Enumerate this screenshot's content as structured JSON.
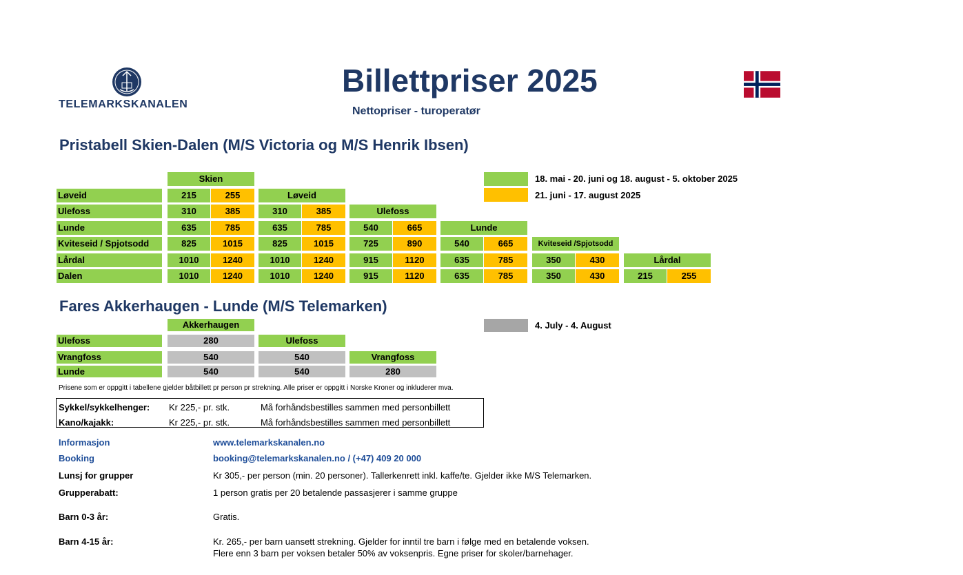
{
  "header": {
    "logo_text": "TELEMARKSKANALEN",
    "title": "Billettpriser 2025",
    "subtitle": "Nettopriser - turoperatør"
  },
  "section1": {
    "title": "Pristabell Skien-Dalen (M/S Victoria og M/S Henrik Ibsen)",
    "legend": [
      {
        "color": "#92d050",
        "label": "18. mai - 20. juni og 18. august - 5. oktober 2025"
      },
      {
        "color": "#ffc000",
        "label": "21. juni - 17. august 2025"
      }
    ],
    "row_labels": [
      "Løveid",
      "Ulefoss",
      "Lunde",
      "Kviteseid / Spjotsodd",
      "Lårdal",
      "Dalen"
    ],
    "col_headers": [
      "Skien",
      "Løveid",
      "Ulefoss",
      "Lunde",
      "Kviteseid /Spjotsodd",
      "Lårdal"
    ],
    "prices": [
      [
        [
          "215",
          "255"
        ]
      ],
      [
        [
          "310",
          "385"
        ],
        [
          "310",
          "385"
        ]
      ],
      [
        [
          "635",
          "785"
        ],
        [
          "635",
          "785"
        ],
        [
          "540",
          "665"
        ]
      ],
      [
        [
          "825",
          "1015"
        ],
        [
          "825",
          "1015"
        ],
        [
          "725",
          "890"
        ],
        [
          "540",
          "665"
        ]
      ],
      [
        [
          "1010",
          "1240"
        ],
        [
          "1010",
          "1240"
        ],
        [
          "915",
          "1120"
        ],
        [
          "635",
          "785"
        ],
        [
          "350",
          "430"
        ]
      ],
      [
        [
          "1010",
          "1240"
        ],
        [
          "1010",
          "1240"
        ],
        [
          "915",
          "1120"
        ],
        [
          "635",
          "785"
        ],
        [
          "350",
          "430"
        ],
        [
          "215",
          "255"
        ]
      ]
    ]
  },
  "section2": {
    "title": "Fares Akkerhaugen - Lunde (M/S Telemarken)",
    "legend": {
      "color": "#a6a6a6",
      "label": "4. July - 4. August"
    },
    "row_labels": [
      "Ulefoss",
      "Vrangfoss",
      "Lunde"
    ],
    "col_headers": [
      "Akkerhaugen",
      "Ulefoss",
      "Vrangfoss"
    ],
    "prices": [
      [
        "280"
      ],
      [
        "540",
        "540"
      ],
      [
        "540",
        "540",
        "280"
      ]
    ]
  },
  "note": "Prisene som er oppgitt i tabellene gjelder båtbillett pr person pr strekning. Alle priser er oppgitt i Norske Kroner og inkluderer mva.",
  "extras": [
    {
      "label": "Sykkel/sykkelhenger:",
      "price": "Kr 225,- pr. stk.",
      "text": "Må forhåndsbestilles sammen med personbillett"
    },
    {
      "label": "Kano/kajakk:",
      "price": "Kr 225,- pr. stk.",
      "text": "Må forhåndsbestilles sammen med personbillett"
    }
  ],
  "info": {
    "informasjon_label": "Informasjon",
    "informasjon_value": "www.telemarkskanalen.no",
    "booking_label": "Booking",
    "booking_value": "booking@telemarkskanalen.no /  (+47) 409 20 000",
    "lunsj_label": "Lunsj for grupper",
    "lunsj_value": "Kr 305,- per person (min. 20 personer). Tallerkenrett inkl. kaffe/te. Gjelder ikke M/S Telemarken.",
    "grupperabatt_label": "Grupperabatt:",
    "grupperabatt_value": "1 person gratis per 20 betalende passasjerer i samme gruppe",
    "barn03_label": "Barn 0-3 år:",
    "barn03_value": "Gratis.",
    "barn415_label": "Barn 4-15 år:",
    "barn415_value_1": "Kr. 265,- per barn uansett strekning. Gjelder for inntil tre barn i følge med en betalende voksen.",
    "barn415_value_2": "Flere enn 3 barn per voksen betaler 50% av voksenpris. Egne priser for skoler/barnehager."
  }
}
